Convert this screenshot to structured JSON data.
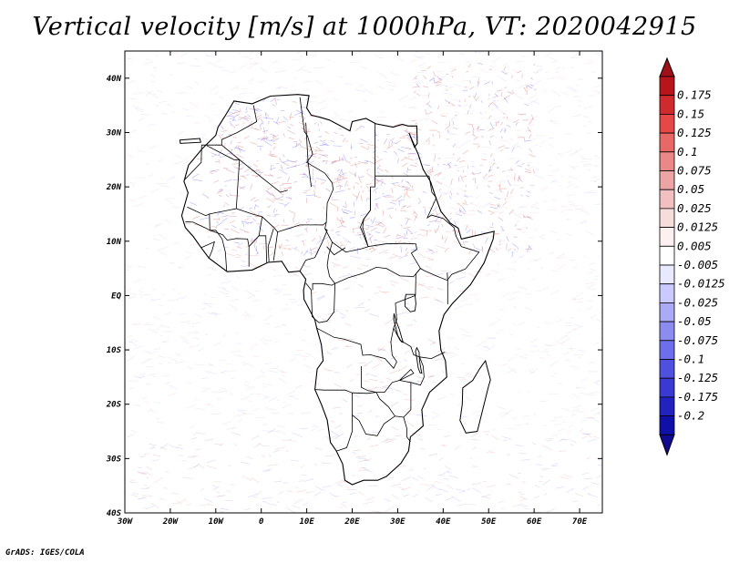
{
  "title": "Vertical velocity [m/s] at 1000hPa, VT: 2020042915",
  "credit": "GrADS: IGES/COLA",
  "map": {
    "lon_range": [
      -30,
      75
    ],
    "lat_range": [
      -40,
      45
    ],
    "x_ticks": [
      {
        "lon": -30,
        "label": "30W"
      },
      {
        "lon": -20,
        "label": "20W"
      },
      {
        "lon": -10,
        "label": "10W"
      },
      {
        "lon": 0,
        "label": "0"
      },
      {
        "lon": 10,
        "label": "10E"
      },
      {
        "lon": 20,
        "label": "20E"
      },
      {
        "lon": 30,
        "label": "30E"
      },
      {
        "lon": 40,
        "label": "40E"
      },
      {
        "lon": 50,
        "label": "50E"
      },
      {
        "lon": 60,
        "label": "60E"
      },
      {
        "lon": 70,
        "label": "70E"
      }
    ],
    "y_ticks": [
      {
        "lat": 40,
        "label": "40N"
      },
      {
        "lat": 30,
        "label": "30N"
      },
      {
        "lat": 20,
        "label": "20N"
      },
      {
        "lat": 10,
        "label": "10N"
      },
      {
        "lat": 0,
        "label": "EQ"
      },
      {
        "lat": -10,
        "label": "10S"
      },
      {
        "lat": -20,
        "label": "20S"
      },
      {
        "lat": -30,
        "label": "30S"
      },
      {
        "lat": -40,
        "label": "40S"
      }
    ],
    "coastline": [
      [
        -17,
        21
      ],
      [
        -16,
        24
      ],
      [
        -13,
        27
      ],
      [
        -10,
        29.5
      ],
      [
        -9.5,
        31
      ],
      [
        -8,
        33
      ],
      [
        -6,
        35.8
      ],
      [
        -2,
        35.3
      ],
      [
        2,
        36.7
      ],
      [
        8,
        37
      ],
      [
        10.5,
        36.8
      ],
      [
        10,
        34.5
      ],
      [
        11,
        33.2
      ],
      [
        13,
        32.8
      ],
      [
        15,
        32.3
      ],
      [
        19.5,
        30.3
      ],
      [
        20,
        32
      ],
      [
        23,
        32.6
      ],
      [
        25.2,
        31.6
      ],
      [
        29,
        31
      ],
      [
        31,
        31.5
      ],
      [
        32.3,
        31.2
      ],
      [
        34.2,
        31.2
      ],
      [
        34.3,
        28
      ],
      [
        33.7,
        27.3
      ],
      [
        32.5,
        29.9
      ],
      [
        34.5,
        26
      ],
      [
        35.6,
        23.2
      ],
      [
        37.2,
        21
      ],
      [
        38.4,
        18
      ],
      [
        39.5,
        15.5
      ],
      [
        41.6,
        13.3
      ],
      [
        43.3,
        12.4
      ],
      [
        44,
        10.4
      ],
      [
        51.2,
        11.8
      ],
      [
        51,
        10.4
      ],
      [
        49,
        6
      ],
      [
        46,
        2
      ],
      [
        42,
        -1.5
      ],
      [
        40.2,
        -3.5
      ],
      [
        39.1,
        -6.5
      ],
      [
        39.5,
        -10
      ],
      [
        40.5,
        -12
      ],
      [
        40.8,
        -15
      ],
      [
        37,
        -17.8
      ],
      [
        35.3,
        -21
      ],
      [
        35.6,
        -24
      ],
      [
        32.8,
        -26
      ],
      [
        32.4,
        -28.6
      ],
      [
        30.7,
        -30.9
      ],
      [
        27.5,
        -33.3
      ],
      [
        25.6,
        -34
      ],
      [
        22.5,
        -34
      ],
      [
        20,
        -34.8
      ],
      [
        18.4,
        -34
      ],
      [
        17.9,
        -31
      ],
      [
        16.5,
        -28.6
      ],
      [
        15.2,
        -27
      ],
      [
        14.5,
        -22.9
      ],
      [
        13.2,
        -20
      ],
      [
        11.8,
        -17.3
      ],
      [
        12.3,
        -13.5
      ],
      [
        13.6,
        -12
      ],
      [
        13.2,
        -9
      ],
      [
        12.2,
        -6
      ],
      [
        11.8,
        -4.5
      ],
      [
        9.4,
        -0.7
      ],
      [
        9.3,
        1
      ],
      [
        9.8,
        3
      ],
      [
        8.5,
        4.5
      ],
      [
        6,
        4.3
      ],
      [
        4.5,
        6.3
      ],
      [
        1.5,
        6.1
      ],
      [
        -2,
        4.7
      ],
      [
        -7.5,
        4.4
      ],
      [
        -11.5,
        6.9
      ],
      [
        -13.2,
        8.8
      ],
      [
        -15,
        10.9
      ],
      [
        -16.7,
        12.5
      ],
      [
        -17.5,
        14.7
      ],
      [
        -16.1,
        18.9
      ],
      [
        -17,
        21
      ]
    ],
    "islands": [
      [
        [
          49.3,
          -12
        ],
        [
          50.4,
          -15.5
        ],
        [
          49.9,
          -17
        ],
        [
          47.5,
          -25
        ],
        [
          45,
          -25.3
        ],
        [
          43.7,
          -23
        ],
        [
          44.2,
          -20
        ],
        [
          44.3,
          -17
        ],
        [
          46.5,
          -15.6
        ],
        [
          48,
          -13.5
        ]
      ],
      [
        [
          -17.9,
          28.6
        ],
        [
          -13.5,
          28.9
        ],
        [
          -13.3,
          28.2
        ],
        [
          -17.8,
          28.0
        ]
      ]
    ],
    "borders": [
      [
        [
          -1.7,
          35
        ],
        [
          -1,
          32
        ],
        [
          -5.3,
          30
        ],
        [
          -8.7,
          28.7
        ],
        [
          -8.7,
          27.7
        ],
        [
          -4.8,
          25
        ],
        [
          1.2,
          21
        ],
        [
          4.2,
          19
        ],
        [
          5.8,
          19.4
        ]
      ],
      [
        [
          -8.7,
          27.7
        ],
        [
          -13.1,
          27.7
        ],
        [
          -13.2,
          24.5
        ],
        [
          -17,
          21.2
        ]
      ],
      [
        [
          -12,
          27.6
        ],
        [
          -6,
          25
        ],
        [
          -4.8,
          25
        ],
        [
          -5.5,
          16
        ],
        [
          -11.4,
          15
        ],
        [
          -12.2,
          14.7
        ],
        [
          -16.3,
          16.3
        ]
      ],
      [
        [
          8.5,
          36.5
        ],
        [
          9.5,
          30.2
        ],
        [
          10.2,
          29.3
        ],
        [
          11.3,
          26
        ],
        [
          10,
          24.5
        ],
        [
          12,
          23.5
        ],
        [
          14,
          22.5
        ]
      ],
      [
        [
          9.8,
          31.8
        ],
        [
          10.3,
          24.5
        ],
        [
          11,
          20
        ]
      ],
      [
        [
          25,
          31.7
        ],
        [
          25,
          22
        ],
        [
          25,
          20
        ],
        [
          24,
          20
        ],
        [
          24,
          15.7
        ],
        [
          22.5,
          14
        ],
        [
          22.3,
          12.5
        ]
      ],
      [
        [
          25,
          22
        ],
        [
          31.5,
          22
        ],
        [
          36.9,
          22
        ]
      ],
      [
        [
          14,
          22.5
        ],
        [
          15.6,
          20.7
        ],
        [
          15.8,
          19.5
        ],
        [
          14.5,
          17
        ],
        [
          14.3,
          13.5
        ],
        [
          13.6,
          13
        ],
        [
          8.5,
          13
        ],
        [
          3.6,
          11.7
        ],
        [
          2.8,
          12.5
        ],
        [
          0.2,
          14.5
        ],
        [
          -2,
          15
        ],
        [
          -5.5,
          16
        ]
      ],
      [
        [
          24,
          19.5
        ],
        [
          24,
          15.7
        ],
        [
          22.5,
          14
        ],
        [
          21.8,
          12.6
        ],
        [
          23.5,
          9
        ],
        [
          22,
          8.6
        ],
        [
          18.6,
          8
        ],
        [
          15.6,
          9.8
        ],
        [
          14,
          12.3
        ],
        [
          14.3,
          13.5
        ]
      ],
      [
        [
          22.3,
          12.5
        ],
        [
          23.5,
          9
        ],
        [
          27.3,
          9.5
        ],
        [
          31.5,
          9.6
        ],
        [
          34,
          9.5
        ],
        [
          34.2,
          8.5
        ],
        [
          33,
          7.8
        ],
        [
          35,
          5
        ],
        [
          33.5,
          3.5
        ],
        [
          30.5,
          3.6
        ],
        [
          27.5,
          5
        ],
        [
          25.3,
          5.2
        ],
        [
          22.4,
          4.1
        ],
        [
          19.2,
          3.3
        ],
        [
          16.2,
          2.2
        ],
        [
          15,
          3.5
        ],
        [
          14.5,
          5.5
        ],
        [
          14.8,
          7.4
        ],
        [
          15.6,
          9.8
        ]
      ],
      [
        [
          36.9,
          22
        ],
        [
          37.5,
          19
        ],
        [
          38.5,
          18
        ],
        [
          36.5,
          14.3
        ],
        [
          37.4,
          14.8
        ],
        [
          40,
          14.2
        ],
        [
          42.4,
          12.5
        ],
        [
          42.8,
          11
        ],
        [
          44,
          9
        ],
        [
          47.9,
          8
        ],
        [
          44.9,
          4.9
        ],
        [
          41.9,
          3.9
        ],
        [
          40.9,
          2.8
        ],
        [
          38.5,
          3.6
        ],
        [
          35.8,
          4.6
        ],
        [
          35,
          5
        ]
      ],
      [
        [
          41,
          -1.6
        ],
        [
          41,
          2.8
        ],
        [
          40.9,
          4.2
        ]
      ],
      [
        [
          35,
          5
        ],
        [
          34,
          4
        ],
        [
          33.9,
          0
        ],
        [
          29.5,
          -1.4
        ],
        [
          29.8,
          -4.4
        ],
        [
          29.1,
          -6
        ],
        [
          30.5,
          -8.2
        ],
        [
          32.9,
          -9.4
        ],
        [
          33.5,
          -10.9
        ],
        [
          34.8,
          -11.3
        ],
        [
          37.4,
          -11.6
        ],
        [
          40.4,
          -10.4
        ]
      ],
      [
        [
          29.1,
          -6
        ],
        [
          28.5,
          -8.5
        ],
        [
          28.8,
          -11
        ],
        [
          29.8,
          -12.2
        ],
        [
          29.1,
          -13.4
        ],
        [
          27.2,
          -11.6
        ],
        [
          25.3,
          -11.2
        ],
        [
          24,
          -10.9
        ],
        [
          22.3,
          -11
        ],
        [
          21.9,
          -9
        ],
        [
          18.1,
          -8
        ],
        [
          16,
          -7.7
        ],
        [
          12.2,
          -6
        ]
      ],
      [
        [
          16.2,
          2.2
        ],
        [
          16,
          -3
        ],
        [
          14.5,
          -4.7
        ],
        [
          12.7,
          -5
        ],
        [
          11.2,
          -3.9
        ],
        [
          11,
          1
        ],
        [
          9.8,
          2.3
        ]
      ],
      [
        [
          11.3,
          1
        ],
        [
          11.3,
          2.2
        ],
        [
          13.3,
          2.2
        ],
        [
          15.5,
          1.9
        ],
        [
          16.2,
          2.2
        ]
      ],
      [
        [
          22,
          -13
        ],
        [
          22,
          -16.9
        ],
        [
          23.5,
          -17.5
        ],
        [
          25.3,
          -17.8
        ],
        [
          27.1,
          -17.8
        ],
        [
          28.8,
          -16
        ],
        [
          30.4,
          -15.6
        ],
        [
          32.9,
          -13.6
        ],
        [
          33.5,
          -14.3
        ],
        [
          30.5,
          -15.6
        ],
        [
          30.4,
          -15.6
        ]
      ],
      [
        [
          11.8,
          -17.3
        ],
        [
          13.9,
          -17.4
        ],
        [
          18.5,
          -17.4
        ],
        [
          20,
          -17.9
        ],
        [
          23.3,
          -18
        ],
        [
          25.3,
          -17.8
        ]
      ],
      [
        [
          20,
          -17.9
        ],
        [
          20,
          -22
        ],
        [
          20,
          -25
        ],
        [
          18.8,
          -28
        ],
        [
          17,
          -28.5
        ],
        [
          16.5,
          -28.6
        ]
      ],
      [
        [
          20,
          -22
        ],
        [
          21.5,
          -23
        ],
        [
          23,
          -25.5
        ],
        [
          25.5,
          -25.8
        ],
        [
          27,
          -23.6
        ],
        [
          29.4,
          -22.2
        ]
      ],
      [
        [
          25.3,
          -17.8
        ],
        [
          26,
          -19
        ],
        [
          28,
          -20.5
        ],
        [
          29.4,
          -22.2
        ],
        [
          31.3,
          -22.4
        ],
        [
          32.9,
          -21
        ],
        [
          32.9,
          -18
        ],
        [
          32.9,
          -16
        ],
        [
          30.4,
          -15.6
        ]
      ],
      [
        [
          32.9,
          -16
        ],
        [
          35,
          -16.5
        ],
        [
          35.8,
          -15
        ],
        [
          35.6,
          -13
        ],
        [
          34.8,
          -11.3
        ]
      ],
      [
        [
          31.3,
          -22.4
        ],
        [
          32,
          -24.4
        ],
        [
          32,
          -26
        ],
        [
          32.8,
          -26.9
        ]
      ],
      [
        [
          -16.7,
          13.6
        ],
        [
          -15,
          13.5
        ],
        [
          -12.2,
          12.4
        ],
        [
          -11.3,
          12
        ],
        [
          -8.5,
          11.2
        ],
        [
          -7.5,
          10.2
        ],
        [
          -5.5,
          10.5
        ],
        [
          -3,
          10.4
        ],
        [
          -2.7,
          9
        ],
        [
          -2.7,
          5.3
        ]
      ],
      [
        [
          -11.4,
          15
        ],
        [
          -11.3,
          12
        ],
        [
          -10,
          12
        ],
        [
          -8.6,
          10.4
        ],
        [
          -7.9,
          8
        ],
        [
          -7.6,
          4.4
        ]
      ],
      [
        [
          -13.2,
          8.8
        ],
        [
          -10.3,
          9.9
        ],
        [
          -10.8,
          8.3
        ],
        [
          -11.5,
          6.9
        ]
      ],
      [
        [
          -2.7,
          9
        ],
        [
          -0.5,
          11
        ],
        [
          1,
          11
        ],
        [
          1.2,
          6.1
        ]
      ],
      [
        [
          -0.5,
          11
        ],
        [
          0.2,
          14.5
        ]
      ],
      [
        [
          1.7,
          6.2
        ],
        [
          1.5,
          9
        ],
        [
          2.7,
          12.3
        ]
      ],
      [
        [
          2.7,
          6.4
        ],
        [
          3.6,
          11.7
        ]
      ],
      [
        [
          8.5,
          4.5
        ],
        [
          9.8,
          6.5
        ],
        [
          11.8,
          7
        ],
        [
          13.5,
          10
        ],
        [
          14.5,
          12
        ],
        [
          14,
          12.3
        ]
      ],
      [
        [
          14.4,
          9
        ],
        [
          16,
          7.5
        ],
        [
          18.5,
          8.8
        ]
      ]
    ],
    "lakes": [
      [
        [
          31.8,
          0.2
        ],
        [
          33.8,
          0.2
        ],
        [
          34,
          -1.5
        ],
        [
          33.8,
          -2.8
        ],
        [
          32.8,
          -3
        ],
        [
          31.6,
          -2
        ],
        [
          31.6,
          -0.8
        ]
      ],
      [
        [
          29.2,
          -3.3
        ],
        [
          29.6,
          -4.6
        ],
        [
          30.4,
          -6.3
        ],
        [
          30.9,
          -7.8
        ],
        [
          31.2,
          -8.6
        ],
        [
          30.8,
          -8.5
        ],
        [
          30,
          -7.3
        ],
        [
          29.5,
          -5.6
        ],
        [
          29.1,
          -4.3
        ]
      ],
      [
        [
          34.2,
          -9.6
        ],
        [
          34.7,
          -10.4
        ],
        [
          34.8,
          -12
        ],
        [
          35.1,
          -13.5
        ],
        [
          35.3,
          -14.3
        ],
        [
          34.9,
          -14.2
        ],
        [
          34.5,
          -13.3
        ],
        [
          34.2,
          -11.5
        ],
        [
          33.9,
          -10.3
        ]
      ]
    ],
    "shading": {
      "red": "#e08888",
      "blue": "#8a8aff"
    }
  },
  "colorbar": {
    "labels": [
      "0.175",
      "0.15",
      "0.125",
      "0.1",
      "0.075",
      "0.05",
      "0.025",
      "0.0125",
      "0.005",
      "-0.005",
      "-0.0125",
      "-0.025",
      "-0.05",
      "-0.075",
      "-0.1",
      "-0.125",
      "-0.175",
      "-0.2"
    ],
    "colors": [
      "#b8141c",
      "#cf2a2e",
      "#e64848",
      "#e86868",
      "#ea8888",
      "#eda4a4",
      "#f2c0c0",
      "#f7dcdc",
      "#fdf0f0",
      "#ffffff",
      "#e8e8ff",
      "#cacaff",
      "#aaaaf6",
      "#8c8cf0",
      "#6e6eea",
      "#5050e0",
      "#3a3ad2",
      "#2222c0",
      "#1010a8"
    ],
    "top_color": "#a01018",
    "bottom_color": "#100a90"
  }
}
